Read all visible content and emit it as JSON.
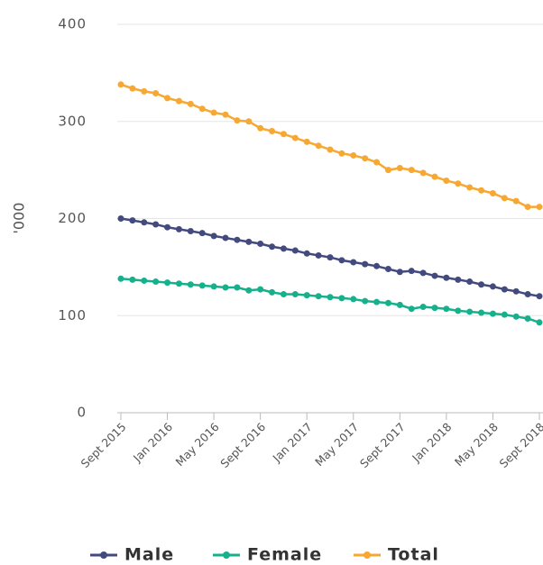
{
  "chart_data": {
    "type": "line",
    "y_label": "'000",
    "categories": [
      "Sept 2015",
      null,
      null,
      null,
      "Jan 2016",
      null,
      null,
      null,
      "May 2016",
      null,
      null,
      null,
      "Sept 2016",
      null,
      null,
      null,
      "Jan 2017",
      null,
      null,
      null,
      "May 2017",
      null,
      null,
      null,
      "Sept 2017",
      null,
      null,
      null,
      "Jan 2018",
      null,
      null,
      null,
      "May 2018",
      null,
      null,
      null,
      "Sept 2018"
    ],
    "series": [
      {
        "name": "Male",
        "color": "#434a7e",
        "values": [
          200,
          198,
          196,
          194,
          191,
          189,
          187,
          185,
          182,
          180,
          178,
          176,
          174,
          171,
          169,
          167,
          164,
          162,
          160,
          157,
          155,
          153,
          151,
          148,
          145,
          146,
          144,
          141,
          139,
          137,
          135,
          132,
          130,
          127,
          125,
          122,
          120
        ]
      },
      {
        "name": "Female",
        "color": "#17b08c",
        "values": [
          138,
          137,
          136,
          135,
          134,
          133,
          132,
          131,
          130,
          129,
          129,
          126,
          127,
          124,
          122,
          122,
          121,
          120,
          119,
          118,
          117,
          115,
          114,
          113,
          111,
          107,
          109,
          108,
          107,
          105,
          104,
          103,
          102,
          101,
          99,
          97,
          93
        ]
      },
      {
        "name": "Total",
        "color": "#f7a833",
        "values": [
          338,
          334,
          331,
          329,
          324,
          321,
          318,
          313,
          309,
          307,
          301,
          300,
          293,
          290,
          287,
          283,
          279,
          275,
          271,
          267,
          265,
          262,
          258,
          250,
          252,
          250,
          247,
          243,
          239,
          236,
          232,
          229,
          226,
          221,
          218,
          212,
          212
        ]
      }
    ],
    "ylim": [
      0,
      400
    ],
    "yticks": [
      0,
      100,
      200,
      300,
      400
    ],
    "grid": true,
    "legend": "bottom"
  }
}
